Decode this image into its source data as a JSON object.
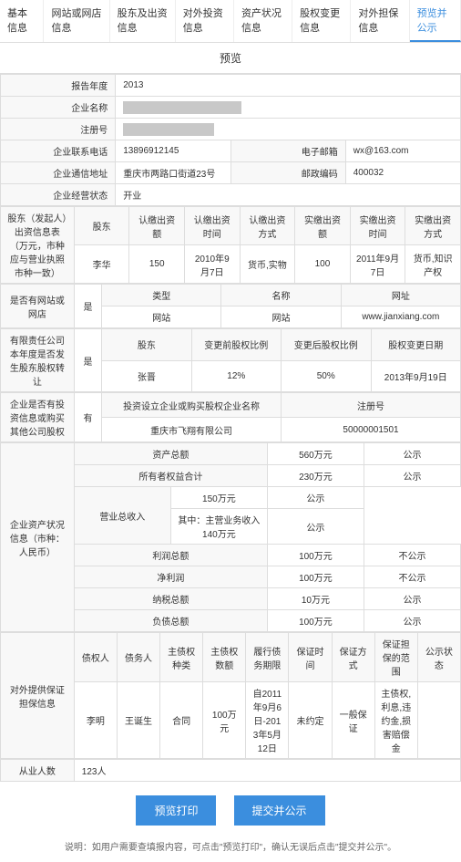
{
  "tabs": [
    "基本信息",
    "网站或网店信息",
    "股东及出资信息",
    "对外投资信息",
    "资产状况信息",
    "股权变更信息",
    "对外担保信息",
    "预览并公示"
  ],
  "active_tab": 7,
  "section_title": "预览",
  "basic": {
    "year_label": "报告年度",
    "year": "2013",
    "name_label": "企业名称",
    "regno_label": "注册号",
    "phone_label": "企业联系电话",
    "phone": "13896912145",
    "email_label": "电子邮箱",
    "email": "wx@163.com",
    "addr_label": "企业通信地址",
    "addr": "重庆市两路口街道23号",
    "zip_label": "邮政编码",
    "zip": "400032",
    "status_label": "企业经营状态",
    "status": "开业"
  },
  "invest": {
    "title": "股东（发起人）出资信息表（万元，市种应与营业执照市种一致）",
    "h1": "股东",
    "h2": "认缴出资额",
    "h3": "认缴出资时间",
    "h4": "认缴出资方式",
    "h5": "实缴出资额",
    "h6": "实缴出资时间",
    "h7": "实缴出资方式",
    "v1": "李华",
    "v2": "150",
    "v3": "2010年9月7日",
    "v4": "货币,实物",
    "v5": "100",
    "v6": "2011年9月7日",
    "v7": "货币,知识产权"
  },
  "web": {
    "title": "是否有网站或网店",
    "val": "是",
    "h1": "类型",
    "h2": "名称",
    "h3": "网址",
    "v1": "网站",
    "v2": "网站",
    "v3": "www.jianxiang.com"
  },
  "equity": {
    "title": "有限责任公司本年度是否发生股东股权转让",
    "val": "是",
    "h1": "股东",
    "h2": "变更前股权比例",
    "h3": "变更后股权比例",
    "h4": "股权变更日期",
    "v1": "张晋",
    "v2": "12%",
    "v3": "50%",
    "v4": "2013年9月19日"
  },
  "outinvest": {
    "title": "企业是否有投资信息或购买其他公司股权",
    "val": "有",
    "h1": "投资设立企业或购买股权企业名称",
    "h2": "注册号",
    "v1": "重庆市飞翔有限公司",
    "v2": "50000001501"
  },
  "asset": {
    "title": "企业资产状况信息（市种：人民币）",
    "rows": [
      {
        "l": "资产总额",
        "v": "560万元",
        "s": "公示"
      },
      {
        "l": "所有者权益合计",
        "v": "230万元",
        "s": "公示"
      },
      {
        "l": "营业总收入",
        "v": "150万元",
        "s": "公示"
      },
      {
        "l": "",
        "v": "其中：主营业务收入140万元",
        "s": "公示"
      },
      {
        "l": "利润总额",
        "v": "100万元",
        "s": "不公示"
      },
      {
        "l": "净利润",
        "v": "100万元",
        "s": "不公示"
      },
      {
        "l": "纳税总额",
        "v": "10万元",
        "s": "公示"
      },
      {
        "l": "负债总额",
        "v": "100万元",
        "s": "公示"
      }
    ]
  },
  "guar": {
    "title": "对外提供保证担保信息",
    "h": [
      "债权人",
      "债务人",
      "主债权种类",
      "主债权数额",
      "履行债务期限",
      "保证时间",
      "保证方式",
      "保证担保的范围",
      "公示状态"
    ],
    "v": [
      "李明",
      "王诞生",
      "合同",
      "100万元",
      "自2011年9月6日-2013年5月12日",
      "未约定",
      "一般保证",
      "主债权,利息,违约金,损害赔偿金",
      ""
    ]
  },
  "emp": {
    "label": "从业人数",
    "val": "123人"
  },
  "btn1": "预览打印",
  "btn2": "提交并公示",
  "note": "说明：如用户需要查填报内容，可点击\"预览打印\"，确认无误后点击\"提交并公示\"。"
}
